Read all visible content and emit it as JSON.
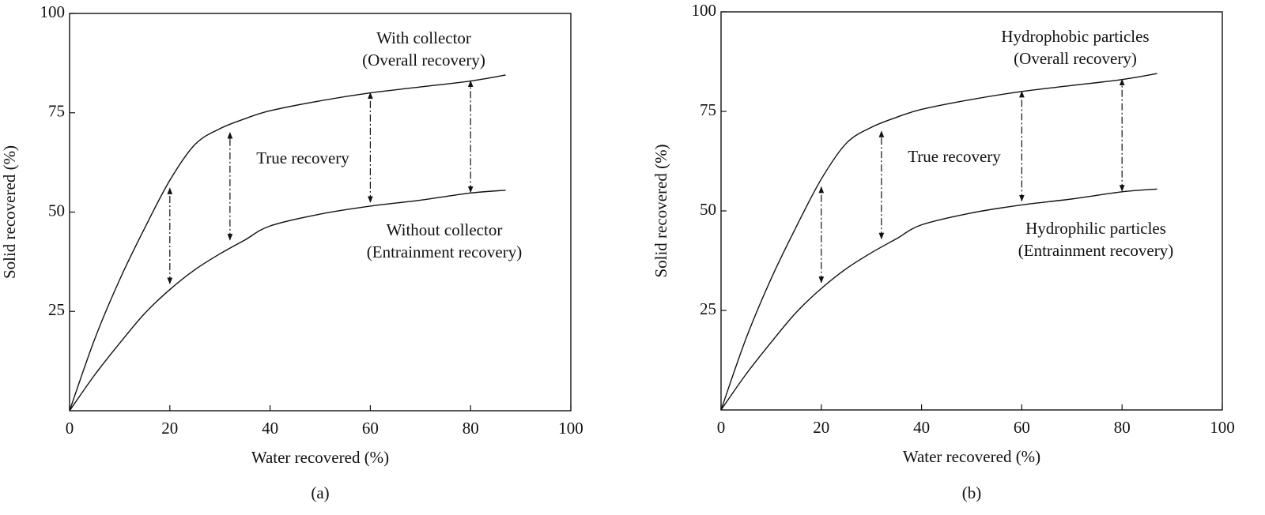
{
  "chart_data": [
    {
      "type": "line",
      "caption": "(a)",
      "x_label": "Water recovered (%)",
      "y_label": "Solid recovered (%)",
      "xlim": [
        0,
        100
      ],
      "ylim": [
        0,
        100
      ],
      "xticks": [
        0,
        20,
        40,
        60,
        80,
        100
      ],
      "yticks": [
        25,
        50,
        75,
        100
      ],
      "x": [
        0,
        5,
        10,
        15,
        20,
        25,
        30,
        35,
        40,
        50,
        60,
        70,
        80,
        87
      ],
      "series": [
        {
          "color": "#111111",
          "values": [
            0,
            18,
            33,
            46,
            58,
            67,
            71,
            73.5,
            75.5,
            78,
            80,
            81.5,
            83,
            84.5
          ]
        },
        {
          "color": "#111111",
          "values": [
            0,
            9,
            17,
            24.5,
            30.5,
            35.5,
            39.5,
            43,
            46.5,
            49.5,
            51.5,
            53,
            54.8,
            55.5
          ]
        }
      ],
      "annotations": [
        [
          "With collector",
          "(Overall recovery)"
        ],
        [
          "Without collector",
          "(Entrainment recovery)"
        ],
        [
          "True recovery"
        ]
      ],
      "arrows": [
        {
          "x": 20,
          "y": [
            32,
            56
          ]
        },
        {
          "x": 32,
          "y": [
            43,
            70
          ]
        },
        {
          "x": 60,
          "y": [
            52.5,
            80
          ]
        },
        {
          "x": 80,
          "y": [
            55,
            83
          ]
        }
      ]
    },
    {
      "type": "line",
      "caption": "(b)",
      "x_label": "Water recovered (%)",
      "y_label": "Solid recovered (%)",
      "xlim": [
        0,
        100
      ],
      "ylim": [
        0,
        100
      ],
      "xticks": [
        0,
        20,
        40,
        60,
        80,
        100
      ],
      "yticks": [
        25,
        50,
        75,
        100
      ],
      "x": [
        0,
        5,
        10,
        15,
        20,
        25,
        30,
        35,
        40,
        50,
        60,
        70,
        80,
        87
      ],
      "series": [
        {
          "color": "#111111",
          "values": [
            0,
            18,
            33,
            46,
            58,
            67,
            71,
            73.5,
            75.5,
            78,
            80,
            81.5,
            83,
            84.5
          ]
        },
        {
          "color": "#111111",
          "values": [
            0,
            9,
            17,
            24.5,
            30.5,
            35.5,
            39.5,
            43,
            46.5,
            49.5,
            51.5,
            53,
            54.8,
            55.5
          ]
        }
      ],
      "annotations": [
        [
          "Hydrophobic particles",
          "(Overall recovery)"
        ],
        [
          "Hydrophilic particles",
          "(Entrainment recovery)"
        ],
        [
          "True recovery"
        ]
      ],
      "arrows": [
        {
          "x": 20,
          "y": [
            32,
            56
          ]
        },
        {
          "x": 32,
          "y": [
            43,
            70
          ]
        },
        {
          "x": 60,
          "y": [
            52.5,
            80
          ]
        },
        {
          "x": 80,
          "y": [
            55,
            83
          ]
        }
      ]
    }
  ]
}
